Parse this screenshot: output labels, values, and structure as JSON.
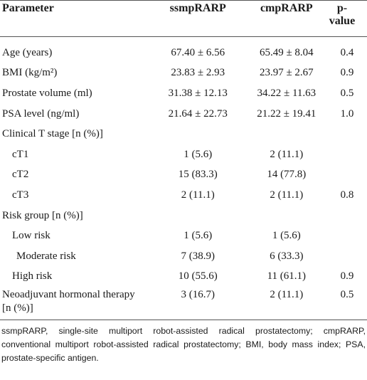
{
  "table": {
    "header": [
      "Parameter",
      "ssmpRARP",
      "cmpRARP",
      "p-value"
    ],
    "rows": [
      {
        "label": "Age (years)",
        "ssmpRARP": "67.40 ± 6.56",
        "cmpRARP": "65.49 ± 8.04",
        "p_value": "0.4"
      },
      {
        "label": "BMI (kg/m²)",
        "ssmpRARP": "23.83 ± 2.93",
        "cmpRARP": "23.97 ± 2.67",
        "p_value": "0.9"
      },
      {
        "label": "Prostate volume (ml)",
        "ssmpRARP": "31.38 ± 12.13",
        "cmpRARP": "34.22 ± 11.63",
        "p_value": "0.5"
      },
      {
        "label": "PSA level (ng/ml)",
        "ssmpRARP": "21.64 ± 22.73",
        "cmpRARP": "21.22 ± 19.41",
        "p_value": "1.0"
      },
      {
        "label": "Clinical T stage [n (%)]"
      },
      {
        "label": "cT1",
        "ssmpRARP": "1 (5.6)",
        "cmpRARP": "2 (11.1)"
      },
      {
        "label": "cT2",
        "ssmpRARP": "15 (83.3)",
        "cmpRARP": "14 (77.8)"
      },
      {
        "label": "cT3",
        "ssmpRARP": "2 (11.1)",
        "cmpRARP": "2 (11.1)",
        "p_value": "0.8"
      },
      {
        "label": "Risk group [n (%)]"
      },
      {
        "label": "Low risk",
        "ssmpRARP": "1 (5.6)",
        "cmpRARP": "1 (5.6)"
      },
      {
        "label": "Moderate risk",
        "ssmpRARP": "7 (38.9)",
        "cmpRARP": "6 (33.3)"
      },
      {
        "label": "High risk",
        "ssmpRARP": "10 (55.6)",
        "cmpRARP": "11 (61.1)",
        "p_value": "0.9"
      },
      {
        "label": "Neoadjuvant hormonal therapy [n (%)]",
        "ssmpRARP": "3 (16.7)",
        "cmpRARP": "2 (11.1)",
        "p_value": "0.5"
      }
    ]
  },
  "footnote": "ssmpRARP, single-site multiport robot-assisted radical prostatectomy; cmpRARP, conventional multiport robot-assisted radical prostatectomy; BMI, body mass index; PSA, prostate-specific antigen."
}
